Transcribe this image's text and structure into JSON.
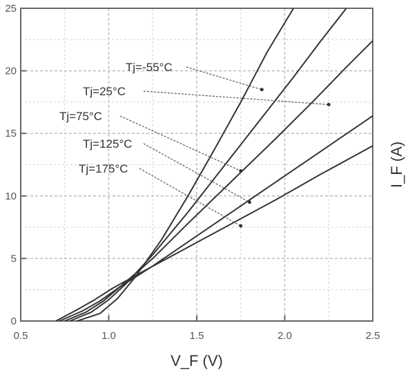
{
  "chart_data": {
    "type": "line",
    "title": "",
    "xlabel": "V_F (V)",
    "ylabel": "I_F (A)",
    "xlim": [
      0.5,
      2.5
    ],
    "ylim": [
      0,
      25
    ],
    "x_ticks": [
      "0.5",
      "1.0",
      "1.5",
      "2.0",
      "2.5"
    ],
    "y_ticks": [
      "0",
      "5",
      "10",
      "15",
      "20",
      "25"
    ],
    "grid": true,
    "series": [
      {
        "name": "Tj=-55°C",
        "x": [
          0.82,
          0.95,
          1.05,
          1.15,
          1.3,
          1.45,
          1.6,
          1.75,
          1.9,
          2.05
        ],
        "y": [
          0,
          0.6,
          1.8,
          3.5,
          6.5,
          10,
          13.7,
          17.5,
          21.5,
          25
        ]
      },
      {
        "name": "Tj=25°C",
        "x": [
          0.78,
          0.9,
          1.0,
          1.1,
          1.25,
          1.45,
          1.65,
          1.85,
          2.05,
          2.2,
          2.35
        ],
        "y": [
          0,
          0.7,
          1.7,
          3.0,
          5.3,
          8.7,
          12.3,
          15.9,
          19.5,
          22.3,
          25
        ]
      },
      {
        "name": "Tj=75°C",
        "x": [
          0.75,
          0.87,
          0.97,
          1.07,
          1.25,
          1.45,
          1.7,
          1.95,
          2.15,
          2.35,
          2.5
        ],
        "y": [
          0,
          0.7,
          1.6,
          2.8,
          5.0,
          7.8,
          11.2,
          14.6,
          17.4,
          20.3,
          22.4
        ]
      },
      {
        "name": "Tj=125°C",
        "x": [
          0.72,
          0.85,
          0.95,
          1.05,
          1.25,
          1.5,
          1.75,
          2.0,
          2.25,
          2.5
        ],
        "y": [
          0,
          0.8,
          1.6,
          2.6,
          4.4,
          6.8,
          9.2,
          11.6,
          14.0,
          16.4
        ]
      },
      {
        "name": "Tj=175°C",
        "x": [
          0.7,
          0.82,
          0.92,
          1.02,
          1.2,
          1.45,
          1.7,
          1.95,
          2.2,
          2.5
        ],
        "y": [
          0,
          0.9,
          1.7,
          2.6,
          4.0,
          5.9,
          7.8,
          9.7,
          11.7,
          14.0
        ]
      }
    ],
    "annotations": [
      {
        "text": "Tj=-55°C",
        "points_to": [
          1.87,
          18.5
        ]
      },
      {
        "text": "Tj=25°C",
        "points_to": [
          2.25,
          17.3
        ]
      },
      {
        "text": "Tj=75°C",
        "points_to": [
          1.75,
          12.0
        ]
      },
      {
        "text": "Tj=125°C",
        "points_to": [
          1.8,
          9.5
        ]
      },
      {
        "text": "Tj=175°C",
        "points_to": [
          1.75,
          7.6
        ]
      }
    ]
  }
}
